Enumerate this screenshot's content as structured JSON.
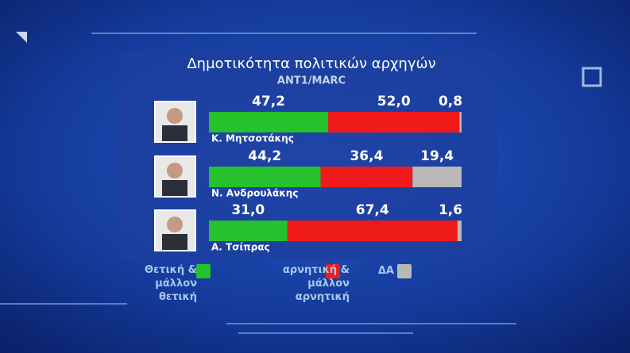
{
  "chart_data": {
    "type": "stacked-bar-horizontal",
    "title": "Δημοτικότητα πολιτικών αρχηγών",
    "subtitle": "ANT1/MARC",
    "categories": [
      "Κ. Μητσοτάκης",
      "Ν. Ανδρουλάκης",
      "Α. Τσίπρας"
    ],
    "xlim": [
      0,
      100
    ],
    "series": [
      {
        "name": "Θετική & μάλλον θετική",
        "color": "#25c22d",
        "values": [
          47.2,
          44.2,
          31.0
        ],
        "value_labels": [
          "47,2",
          "44,2",
          "31,0"
        ]
      },
      {
        "name": "αρνητική & μάλλον αρνητική",
        "color": "#ef1b1b",
        "values": [
          52.0,
          36.4,
          67.4
        ],
        "value_labels": [
          "52,0",
          "36,4",
          "67,4"
        ]
      },
      {
        "name": "ΔΑ",
        "color": "#b8b8b8",
        "values": [
          0.8,
          19.4,
          1.6
        ],
        "value_labels": [
          "0,8",
          "19,4",
          "1,6"
        ]
      }
    ]
  }
}
